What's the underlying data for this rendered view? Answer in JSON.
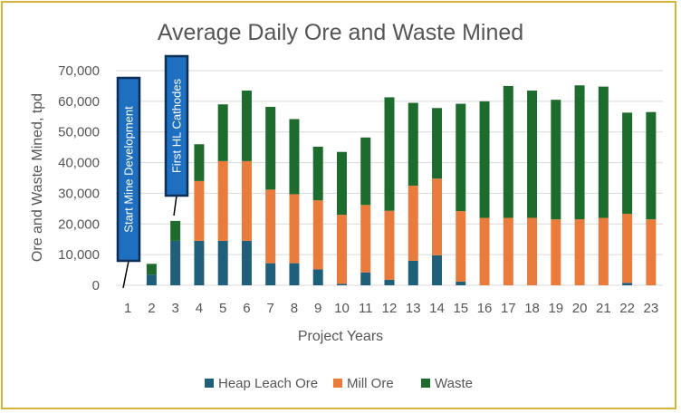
{
  "chart_data": {
    "type": "bar",
    "stacked": true,
    "title": "Average Daily Ore and Waste Mined",
    "xlabel": "Project Years",
    "ylabel": "Ore and Waste Mined, tpd",
    "ylim": [
      0,
      70000
    ],
    "yticks": [
      "0",
      "10,000",
      "20,000",
      "30,000",
      "40,000",
      "50,000",
      "60,000",
      "70,000"
    ],
    "ytick_values": [
      0,
      10000,
      20000,
      30000,
      40000,
      50000,
      60000,
      70000
    ],
    "grid": true,
    "legend_position": "bottom",
    "categories": [
      "1",
      "2",
      "3",
      "4",
      "5",
      "6",
      "7",
      "8",
      "9",
      "10",
      "11",
      "12",
      "13",
      "14",
      "15",
      "16",
      "17",
      "18",
      "19",
      "20",
      "21",
      "22",
      "23"
    ],
    "series": [
      {
        "name": "Heap Leach Ore",
        "color": "#1f5f7a",
        "values": [
          0,
          3500,
          14500,
          14500,
          14500,
          14500,
          7200,
          7200,
          5200,
          500,
          4200,
          1800,
          8000,
          9800,
          1200,
          0,
          0,
          0,
          0,
          0,
          0,
          800,
          0
        ]
      },
      {
        "name": "Mill Ore",
        "color": "#e97b3c",
        "values": [
          0,
          0,
          0,
          19500,
          26000,
          26000,
          24000,
          22500,
          22500,
          22500,
          22000,
          22500,
          24500,
          25000,
          23000,
          22000,
          22000,
          22000,
          21500,
          21500,
          22000,
          22500,
          21500
        ]
      },
      {
        "name": "Waste",
        "color": "#1e6b2e",
        "values": [
          0,
          3500,
          6500,
          12000,
          18500,
          23000,
          27000,
          24500,
          17500,
          20500,
          22000,
          37000,
          27000,
          23000,
          35000,
          38000,
          43000,
          41500,
          39000,
          43700,
          42800,
          33000,
          35000
        ]
      }
    ],
    "annotations": [
      {
        "text": "Start Mine Development",
        "category": "1"
      },
      {
        "text": "First HL Cathodes",
        "category": "3"
      }
    ]
  }
}
